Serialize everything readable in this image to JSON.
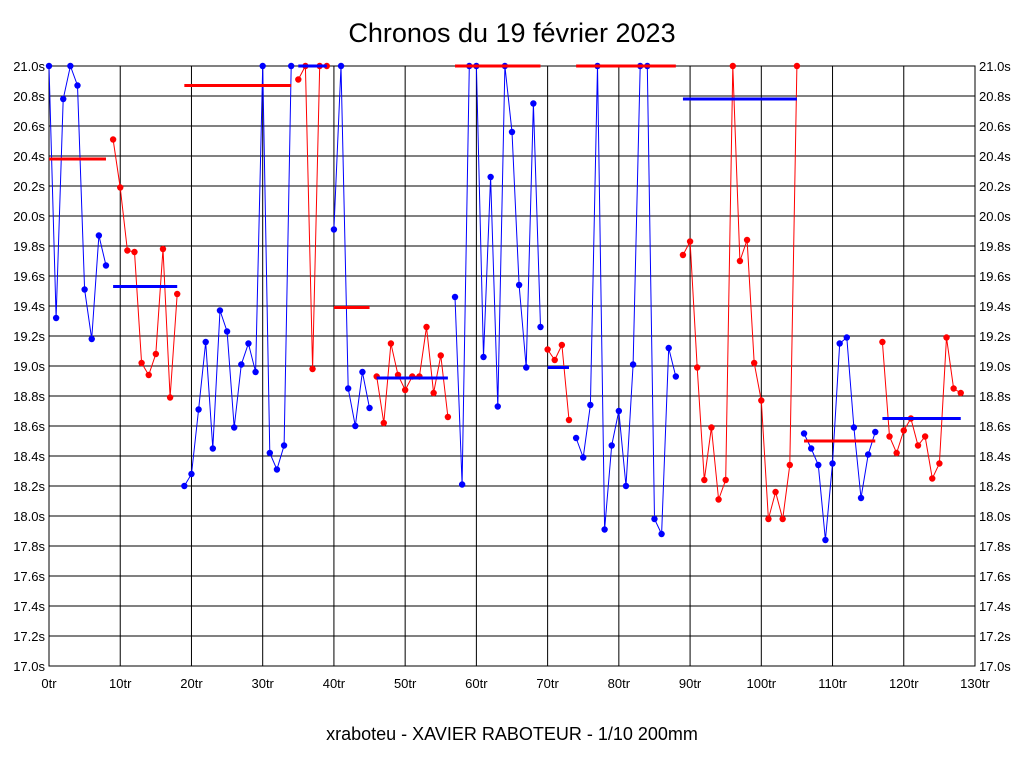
{
  "chart_data": {
    "type": "line",
    "title": "Chronos du 19 février 2023",
    "subtitle": "xraboteu - XAVIER RABOTEUR - 1/10 200mm",
    "xlim": [
      0,
      130
    ],
    "ylim": [
      17.0,
      21.0
    ],
    "x_ticks": [
      0,
      10,
      20,
      30,
      40,
      50,
      60,
      70,
      80,
      90,
      100,
      110,
      120,
      130
    ],
    "x_tick_labels": [
      "0tr",
      "10tr",
      "20tr",
      "30tr",
      "40tr",
      "50tr",
      "60tr",
      "70tr",
      "80tr",
      "90tr",
      "100tr",
      "110tr",
      "120tr",
      "130tr"
    ],
    "y_ticks": [
      17.0,
      17.2,
      17.4,
      17.6,
      17.8,
      18.0,
      18.2,
      18.4,
      18.6,
      18.8,
      19.0,
      19.2,
      19.4,
      19.6,
      19.8,
      20.0,
      20.2,
      20.4,
      20.6,
      20.8,
      21.0
    ],
    "y_tick_labels": [
      "17.0s",
      "17.2s",
      "17.4s",
      "17.6s",
      "17.8s",
      "18.0s",
      "18.2s",
      "18.4s",
      "18.6s",
      "18.8s",
      "19.0s",
      "19.2s",
      "19.4s",
      "19.6s",
      "19.8s",
      "20.0s",
      "20.2s",
      "20.4s",
      "20.6s",
      "20.8s",
      "21.0s"
    ],
    "grid": true,
    "series": [
      {
        "color": "#0000ff",
        "points": [
          [
            0,
            21.0
          ],
          [
            1,
            19.32
          ],
          [
            2,
            20.78
          ],
          [
            3,
            21.0
          ],
          [
            4,
            20.87
          ],
          [
            5,
            19.51
          ],
          [
            6,
            19.18
          ],
          [
            7,
            19.87
          ],
          [
            8,
            19.67
          ]
        ]
      },
      {
        "color": "#ff0000",
        "points": [
          [
            9,
            20.51
          ],
          [
            10,
            20.19
          ],
          [
            11,
            19.77
          ],
          [
            12,
            19.76
          ],
          [
            13,
            19.02
          ],
          [
            14,
            18.94
          ],
          [
            15,
            19.08
          ],
          [
            16,
            19.78
          ],
          [
            17,
            18.79
          ],
          [
            18,
            19.48
          ]
        ]
      },
      {
        "color": "#0000ff",
        "points": [
          [
            19,
            18.2
          ],
          [
            20,
            18.28
          ],
          [
            21,
            18.71
          ],
          [
            22,
            19.16
          ],
          [
            23,
            18.45
          ],
          [
            24,
            19.37
          ],
          [
            25,
            19.23
          ],
          [
            26,
            18.59
          ],
          [
            27,
            19.01
          ],
          [
            28,
            19.15
          ],
          [
            29,
            18.96
          ],
          [
            30,
            21.0
          ],
          [
            31,
            18.42
          ],
          [
            32,
            18.31
          ],
          [
            33,
            18.47
          ],
          [
            34,
            21.0
          ]
        ]
      },
      {
        "color": "#ff0000",
        "points": [
          [
            35,
            20.91
          ],
          [
            36,
            21.0
          ],
          [
            37,
            18.98
          ],
          [
            38,
            21.0
          ],
          [
            39,
            21.0
          ]
        ]
      },
      {
        "color": "#0000ff",
        "points": [
          [
            40,
            19.91
          ],
          [
            41,
            21.0
          ],
          [
            42,
            18.85
          ],
          [
            43,
            18.6
          ],
          [
            44,
            18.96
          ],
          [
            45,
            18.72
          ]
        ]
      },
      {
        "color": "#ff0000",
        "points": [
          [
            46,
            18.93
          ],
          [
            47,
            18.62
          ],
          [
            48,
            19.15
          ],
          [
            49,
            18.94
          ],
          [
            50,
            18.84
          ],
          [
            51,
            18.93
          ],
          [
            52,
            18.93
          ],
          [
            53,
            19.26
          ],
          [
            54,
            18.82
          ],
          [
            55,
            19.07
          ],
          [
            56,
            18.66
          ]
        ]
      },
      {
        "color": "#0000ff",
        "points": [
          [
            57,
            19.46
          ],
          [
            58,
            18.21
          ],
          [
            59,
            21.0
          ],
          [
            60,
            21.0
          ],
          [
            61,
            19.06
          ],
          [
            62,
            20.26
          ],
          [
            63,
            18.73
          ],
          [
            64,
            21.0
          ],
          [
            65,
            20.56
          ],
          [
            66,
            19.54
          ],
          [
            67,
            18.99
          ],
          [
            68,
            20.75
          ],
          [
            69,
            19.26
          ]
        ]
      },
      {
        "color": "#ff0000",
        "points": [
          [
            70,
            19.11
          ],
          [
            71,
            19.04
          ],
          [
            72,
            19.14
          ],
          [
            73,
            18.64
          ]
        ]
      },
      {
        "color": "#0000ff",
        "points": [
          [
            74,
            18.52
          ],
          [
            75,
            18.39
          ],
          [
            76,
            18.74
          ],
          [
            77,
            21.0
          ],
          [
            78,
            17.91
          ],
          [
            79,
            18.47
          ],
          [
            80,
            18.7
          ],
          [
            81,
            18.2
          ],
          [
            82,
            19.01
          ],
          [
            83,
            21.0
          ],
          [
            84,
            21.0
          ],
          [
            85,
            17.98
          ],
          [
            86,
            17.88
          ],
          [
            87,
            19.12
          ],
          [
            88,
            18.93
          ]
        ]
      },
      {
        "color": "#ff0000",
        "points": [
          [
            89,
            19.74
          ],
          [
            90,
            19.83
          ],
          [
            91,
            18.99
          ],
          [
            92,
            18.24
          ],
          [
            93,
            18.59
          ],
          [
            94,
            18.11
          ],
          [
            95,
            18.24
          ],
          [
            96,
            21.0
          ],
          [
            97,
            19.7
          ],
          [
            98,
            19.84
          ],
          [
            99,
            19.02
          ],
          [
            100,
            18.77
          ],
          [
            101,
            17.98
          ],
          [
            102,
            18.16
          ],
          [
            103,
            17.98
          ],
          [
            104,
            18.34
          ],
          [
            105,
            21.0
          ]
        ]
      },
      {
        "color": "#0000ff",
        "points": [
          [
            106,
            18.55
          ],
          [
            107,
            18.45
          ],
          [
            108,
            18.34
          ],
          [
            109,
            17.84
          ],
          [
            110,
            18.35
          ],
          [
            111,
            19.15
          ],
          [
            112,
            19.19
          ],
          [
            113,
            18.59
          ],
          [
            114,
            18.12
          ],
          [
            115,
            18.41
          ],
          [
            116,
            18.56
          ]
        ]
      },
      {
        "color": "#ff0000",
        "points": [
          [
            117,
            19.16
          ],
          [
            118,
            18.53
          ],
          [
            119,
            18.42
          ],
          [
            120,
            18.57
          ],
          [
            121,
            18.65
          ],
          [
            122,
            18.47
          ],
          [
            123,
            18.53
          ],
          [
            124,
            18.25
          ],
          [
            125,
            18.35
          ],
          [
            126,
            19.19
          ],
          [
            127,
            18.85
          ],
          [
            128,
            18.82
          ]
        ]
      }
    ],
    "averages": [
      {
        "color": "#ff0000",
        "x": [
          0,
          8
        ],
        "y": 20.38
      },
      {
        "color": "#0000ff",
        "x": [
          9,
          18
        ],
        "y": 19.53
      },
      {
        "color": "#ff0000",
        "x": [
          19,
          34
        ],
        "y": 20.87
      },
      {
        "color": "#0000ff",
        "x": [
          35,
          39
        ],
        "y": 21.0
      },
      {
        "color": "#ff0000",
        "x": [
          40,
          45
        ],
        "y": 19.39
      },
      {
        "color": "#0000ff",
        "x": [
          46,
          56
        ],
        "y": 18.92
      },
      {
        "color": "#ff0000",
        "x": [
          57,
          69
        ],
        "y": 21.0
      },
      {
        "color": "#0000ff",
        "x": [
          70,
          73
        ],
        "y": 18.99
      },
      {
        "color": "#ff0000",
        "x": [
          74,
          88
        ],
        "y": 21.0
      },
      {
        "color": "#0000ff",
        "x": [
          89,
          105
        ],
        "y": 20.78
      },
      {
        "color": "#ff0000",
        "x": [
          106,
          116
        ],
        "y": 18.5
      },
      {
        "color": "#0000ff",
        "x": [
          117,
          128
        ],
        "y": 18.65
      }
    ]
  }
}
